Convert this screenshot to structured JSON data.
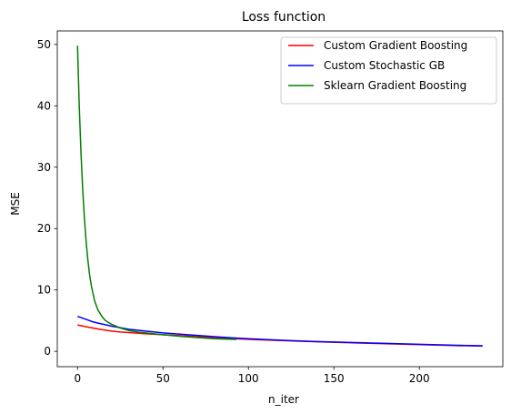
{
  "chart_data": {
    "type": "line",
    "title": "Loss function",
    "xlabel": "n_iter",
    "ylabel": "MSE",
    "xlim": [
      -11.85,
      248.85
    ],
    "ylim": [
      -2.5,
      52.2
    ],
    "xticks": [
      0,
      50,
      100,
      150,
      200
    ],
    "yticks": [
      0,
      10,
      20,
      30,
      40,
      50
    ],
    "grid": false,
    "legend_position": "top-right",
    "series": [
      {
        "name": "Custom Gradient Boosting",
        "color": "#ff0000",
        "x": [
          0,
          5,
          10,
          15,
          20,
          25,
          30,
          40,
          50,
          60,
          70,
          80,
          90,
          100,
          120,
          140,
          160,
          180,
          200,
          220,
          237
        ],
        "y": [
          4.3,
          4.0,
          3.75,
          3.5,
          3.3,
          3.15,
          3.05,
          2.85,
          2.7,
          2.55,
          2.4,
          2.25,
          2.1,
          1.95,
          1.75,
          1.55,
          1.4,
          1.25,
          1.1,
          0.95,
          0.85
        ]
      },
      {
        "name": "Custom Stochastic GB",
        "color": "#0000ff",
        "x": [
          0,
          3,
          6,
          9,
          12,
          16,
          20,
          25,
          30,
          40,
          50,
          60,
          70,
          80,
          90,
          100,
          120,
          140,
          160,
          180,
          200,
          220,
          237
        ],
        "y": [
          5.7,
          5.4,
          5.1,
          4.8,
          4.6,
          4.35,
          4.1,
          3.85,
          3.6,
          3.3,
          3.0,
          2.8,
          2.6,
          2.4,
          2.2,
          2.05,
          1.8,
          1.6,
          1.45,
          1.3,
          1.15,
          1.0,
          0.9
        ]
      },
      {
        "name": "Sklearn Gradient Boosting",
        "color": "#008000",
        "x": [
          0,
          1,
          2,
          3,
          4,
          5,
          6,
          7,
          8,
          10,
          12,
          14,
          16,
          18,
          20,
          25,
          30,
          35,
          40,
          50,
          60,
          70,
          80,
          93
        ],
        "y": [
          49.8,
          40.0,
          32.5,
          26.5,
          21.8,
          18.0,
          15.0,
          12.6,
          10.8,
          8.2,
          6.7,
          5.8,
          5.1,
          4.7,
          4.4,
          3.8,
          3.4,
          3.15,
          3.0,
          2.7,
          2.45,
          2.25,
          2.05,
          1.95
        ]
      }
    ]
  }
}
